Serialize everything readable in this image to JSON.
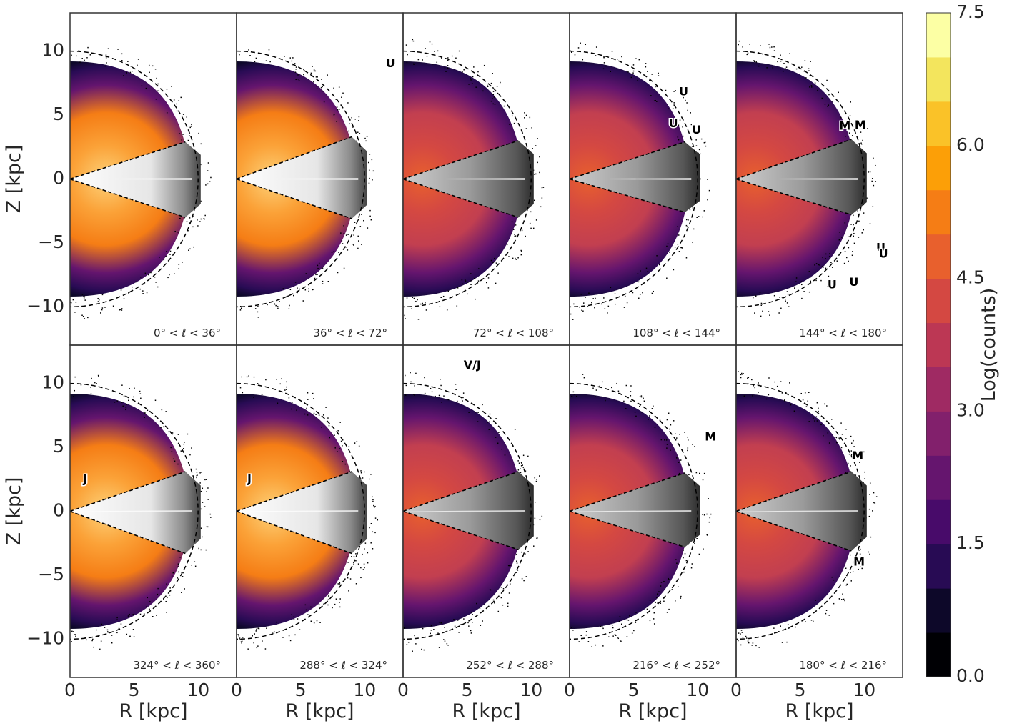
{
  "chart_data": {
    "type": "heatmap",
    "xlabel": "R [kpc]",
    "ylabel": "Z [kpc]",
    "xlim": [
      0,
      13
    ],
    "ylim": [
      -13,
      13
    ],
    "x_ticks": [
      0,
      5,
      10
    ],
    "y_ticks": [
      -10,
      -5,
      0,
      5,
      10
    ],
    "x_tick_labels": [
      "0",
      "5",
      "10"
    ],
    "y_tick_labels": [
      "−10",
      "−5",
      "0",
      "5",
      "10"
    ],
    "grid": false,
    "dashed_circle_radius_kpc": 10,
    "colorbar": {
      "label": "Log(counts)",
      "min": 0.0,
      "max": 7.5,
      "ticks": [
        0.0,
        1.5,
        3.0,
        4.5,
        6.0,
        7.5
      ],
      "tick_labels": [
        "0.0",
        "1.5",
        "3.0",
        "4.5",
        "6.0",
        "7.5"
      ],
      "colormap": [
        "#000004",
        "#0d0829",
        "#280b54",
        "#480b6a",
        "#65156e",
        "#82206c",
        "#9f2a63",
        "#bc3754",
        "#d44842",
        "#e8602d",
        "#f57d15",
        "#fc9f07",
        "#fac228",
        "#f3e55d",
        "#fcffa4"
      ]
    },
    "panels": [
      {
        "label": "0$^\\circ$ < ℓ < 36$^\\circ$",
        "range_text": "0° < ℓ < 36°",
        "wedge_z_at_r9": [
          2.9,
          -3.0
        ],
        "markers": []
      },
      {
        "label": "36° < ℓ < 72°",
        "range_text": "36° < ℓ < 72°",
        "wedge_z_at_r9": [
          3.3,
          -3.1
        ],
        "markers": [
          {
            "text": "U",
            "R": 12.0,
            "Z": 9.0
          }
        ]
      },
      {
        "label": "72° < ℓ < 108°",
        "range_text": "72° < ℓ < 108°",
        "wedge_z_at_r9": [
          3.0,
          -3.0
        ],
        "markers": []
      },
      {
        "label": "108° < ℓ < 144°",
        "range_text": "108° < ℓ < 144°",
        "wedge_z_at_r9": [
          2.9,
          -2.6
        ],
        "markers": [
          {
            "text": "U",
            "R": 8.9,
            "Z": 6.8
          },
          {
            "text": "U",
            "R": 8.1,
            "Z": 4.3
          },
          {
            "text": "U",
            "R": 9.9,
            "Z": 3.8
          }
        ]
      },
      {
        "label": "144° < ℓ < 180°",
        "range_text": "144° < ℓ < 180°",
        "wedge_z_at_r9": [
          3.1,
          -2.8
        ],
        "markers": [
          {
            "text": "M",
            "R": 8.5,
            "Z": 4.1
          },
          {
            "text": "M",
            "R": 9.7,
            "Z": 4.2
          },
          {
            "text": "U",
            "R": 11.3,
            "Z": -5.4
          },
          {
            "text": "U",
            "R": 11.5,
            "Z": -5.9
          },
          {
            "text": "U",
            "R": 7.5,
            "Z": -8.3
          },
          {
            "text": "U",
            "R": 9.2,
            "Z": -8.1
          }
        ]
      },
      {
        "label": "324° < ℓ < 360°",
        "range_text": "324° < ℓ < 360°",
        "wedge_z_at_r9": [
          3.1,
          -3.3
        ],
        "markers": [
          {
            "text": "J",
            "R": 1.2,
            "Z": 2.5
          }
        ]
      },
      {
        "label": "288° < ℓ < 324°",
        "range_text": "288° < ℓ < 324°",
        "wedge_z_at_r9": [
          3.1,
          -3.3
        ],
        "markers": [
          {
            "text": "J",
            "R": 1.0,
            "Z": 2.5
          }
        ]
      },
      {
        "label": "252° < ℓ < 288°",
        "range_text": "252° < ℓ < 288°",
        "wedge_z_at_r9": [
          3.1,
          -3.0
        ],
        "markers": [
          {
            "text": "V/J",
            "R": 5.4,
            "Z": 11.4
          }
        ]
      },
      {
        "label": "216° < ℓ < 252°",
        "range_text": "216° < ℓ < 252°",
        "wedge_z_at_r9": [
          3.0,
          -2.8
        ],
        "markers": [
          {
            "text": "M",
            "R": 11.0,
            "Z": 5.8
          }
        ]
      },
      {
        "label": "180° < ℓ < 216°",
        "range_text": "180° < ℓ < 216°",
        "wedge_z_at_r9": [
          3.1,
          -3.1
        ],
        "markers": [
          {
            "text": "M",
            "R": 9.5,
            "Z": 4.3
          },
          {
            "text": "M",
            "R": 9.6,
            "Z": -4.0
          }
        ]
      }
    ]
  }
}
